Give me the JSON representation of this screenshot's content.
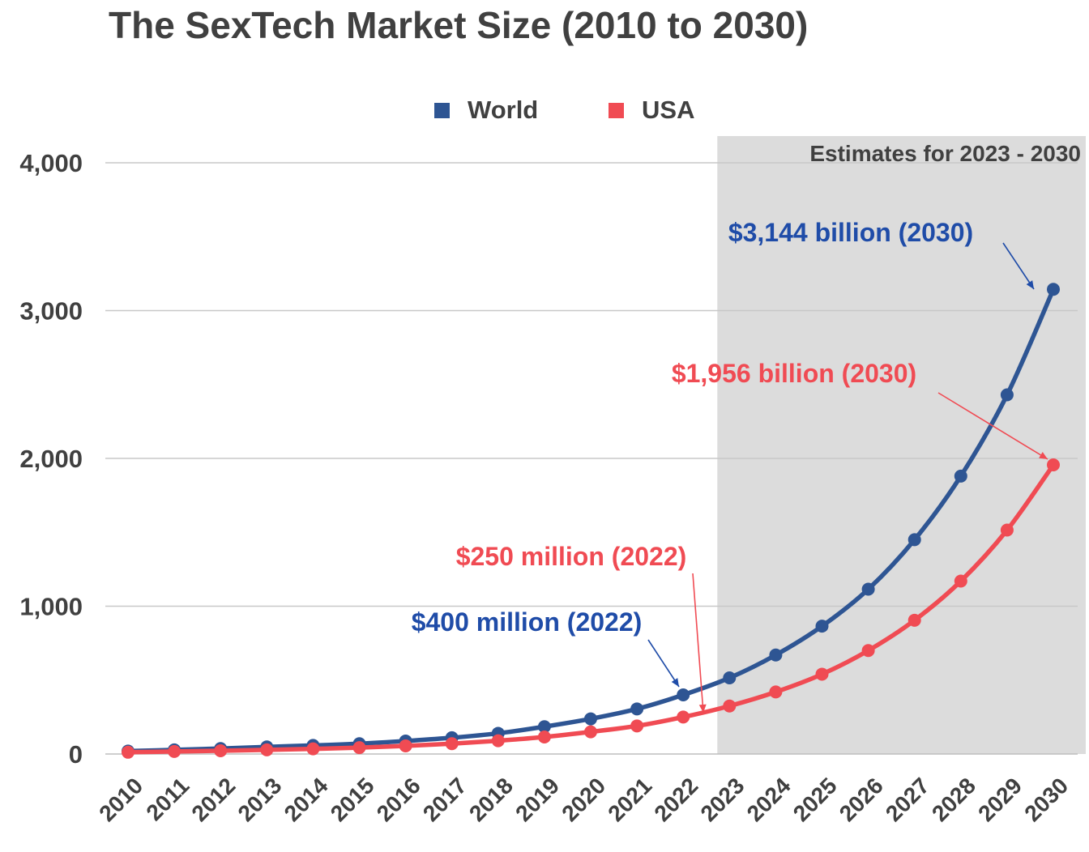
{
  "chart_data": {
    "type": "line",
    "title": "The SexTech Market Size (2010 to 2030)",
    "xlabel": "",
    "ylabel": "",
    "categories": [
      "2010",
      "2011",
      "2012",
      "2013",
      "2014",
      "2015",
      "2016",
      "2017",
      "2018",
      "2019",
      "2020",
      "2021",
      "2022",
      "2023",
      "2024",
      "2025",
      "2026",
      "2027",
      "2028",
      "2029",
      "2030"
    ],
    "ylim": [
      0,
      4000
    ],
    "yticks": [
      0,
      1000,
      2000,
      3000,
      4000
    ],
    "ytick_labels": [
      "0",
      "1,000",
      "2,000",
      "3,000",
      "4,000"
    ],
    "grid": true,
    "legend_position": "top-center",
    "series": [
      {
        "name": "World",
        "color": "#2E5593",
        "values": [
          20,
          28,
          37,
          48,
          58,
          70,
          88,
          110,
          140,
          185,
          238,
          305,
          400,
          515,
          670,
          865,
          1115,
          1450,
          1880,
          2430,
          3144
        ]
      },
      {
        "name": "USA",
        "color": "#F04B53",
        "values": [
          12,
          17,
          22,
          28,
          35,
          43,
          55,
          70,
          90,
          115,
          150,
          190,
          250,
          325,
          420,
          540,
          700,
          905,
          1170,
          1515,
          1956
        ]
      }
    ],
    "shaded_region": {
      "label": "Estimates for 2023 - 2030",
      "from": "2023",
      "to": "2030",
      "color": "#DCDCDC"
    },
    "annotations": [
      {
        "text": "$3,144 billion (2030)",
        "series": "World",
        "x": "2030",
        "color": "#1F4CA8"
      },
      {
        "text": "$1,956 billion (2030)",
        "series": "USA",
        "x": "2030",
        "color": "#F04B53"
      },
      {
        "text": "$250 million (2022)",
        "series": "USA",
        "x": "2022",
        "color": "#F04B53"
      },
      {
        "text": "$400 million (2022)",
        "series": "World",
        "x": "2022",
        "color": "#1F4CA8"
      }
    ]
  }
}
